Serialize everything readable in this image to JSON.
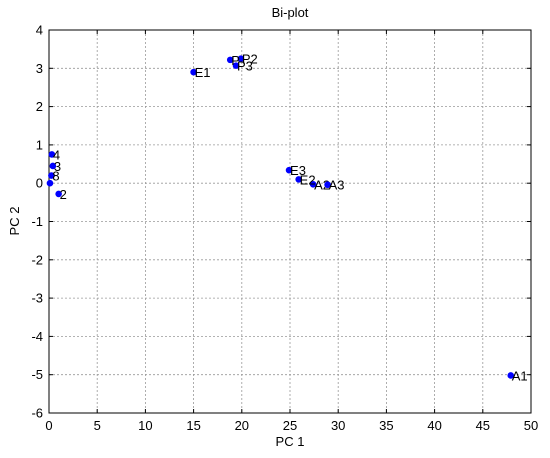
{
  "chart_data": {
    "type": "scatter",
    "title": "Bi-plot",
    "xlabel": "PC 1",
    "ylabel": "PC 2",
    "xlim": [
      0,
      50
    ],
    "ylim": [
      -6,
      4
    ],
    "xticks": [
      "0",
      "5",
      "10",
      "15",
      "20",
      "25",
      "30",
      "35",
      "40",
      "45",
      "50"
    ],
    "yticks": [
      "-6",
      "-5",
      "-4",
      "-3",
      "-2",
      "-1",
      "0",
      "1",
      "2",
      "3",
      "4"
    ],
    "grid": true,
    "marker_color": "#0000ff",
    "points": [
      {
        "label": "A1",
        "x": 47.9,
        "y": -5.02
      },
      {
        "label": "A2",
        "x": 27.4,
        "y": -0.03
      },
      {
        "label": "A3",
        "x": 28.9,
        "y": -0.04
      },
      {
        "label": "E1",
        "x": 15.0,
        "y": 2.9
      },
      {
        "label": "E2",
        "x": 25.9,
        "y": 0.1
      },
      {
        "label": "E3",
        "x": 24.9,
        "y": 0.34
      },
      {
        "label": "P2",
        "x": 19.9,
        "y": 3.25
      },
      {
        "label": "P3",
        "x": 19.4,
        "y": 3.07
      },
      {
        "label": "P",
        "x": 18.8,
        "y": 3.22
      },
      {
        "label": "4",
        "x": 0.3,
        "y": 0.75
      },
      {
        "label": "3",
        "x": 0.4,
        "y": 0.45
      },
      {
        "label": "8",
        "x": 0.25,
        "y": 0.2
      },
      {
        "label": "2",
        "x": 1.0,
        "y": -0.28
      },
      {
        "label": "",
        "x": 0.1,
        "y": 0.0
      }
    ]
  }
}
